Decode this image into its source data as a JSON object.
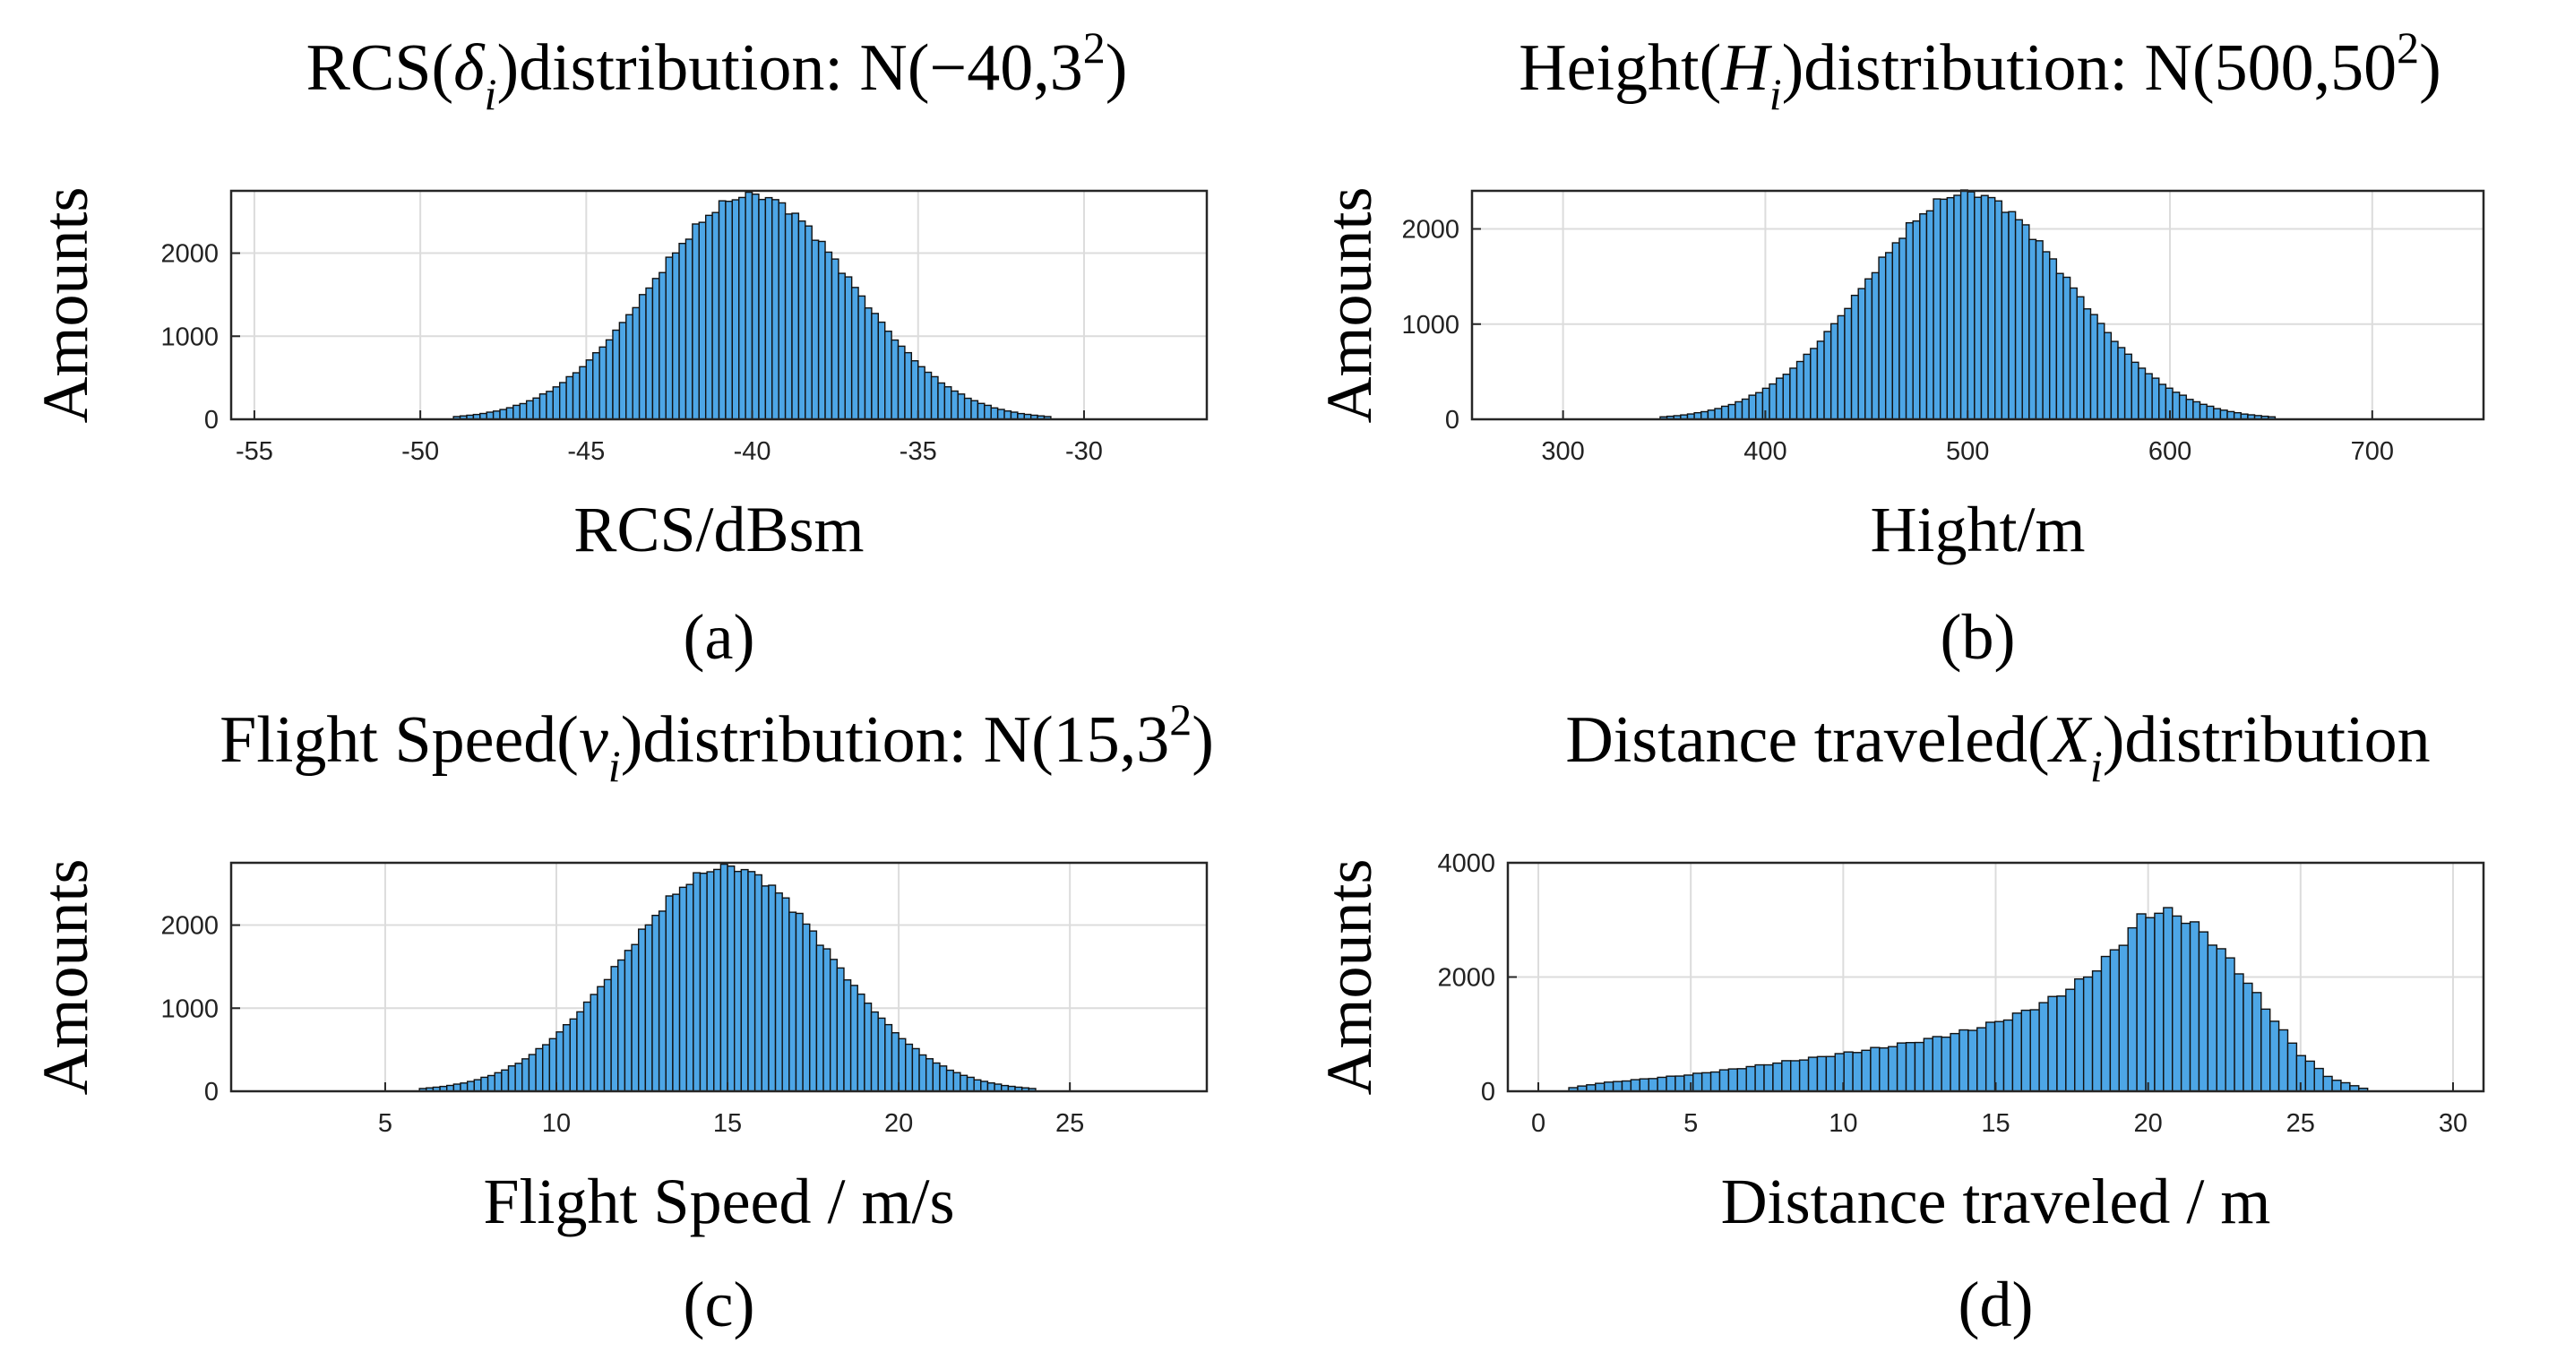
{
  "figure": {
    "bar_color": "#4da6e6",
    "edge_color": "#111111"
  },
  "chart_data": [
    {
      "type": "bar",
      "panel": "(a)",
      "title": {
        "pre": "RCS(",
        "sym": "δ",
        "sub": "i",
        "post": ")distribution: N(−40,3",
        "sup": "2",
        "end": ")"
      },
      "xlabel": "RCS/dBsm",
      "ylabel": "Amounts",
      "xlim": [
        -55.7,
        -26.3
      ],
      "ylim": [
        0,
        2750
      ],
      "xticks": [
        -55,
        -50,
        -45,
        -40,
        -35,
        -30
      ],
      "xtick_labels": [
        "-55",
        "-50",
        "-45",
        "-40",
        "-35",
        "-30"
      ],
      "yticks": [
        0,
        1000,
        2000
      ],
      "ytick_labels": [
        "0",
        "1000",
        "2000"
      ],
      "distribution": {
        "kind": "normal",
        "mu": -40,
        "sigma": 3,
        "n": 100000
      },
      "bin_range": [
        -49,
        -31
      ],
      "bin_count": 90,
      "peak_value": 2700
    },
    {
      "type": "bar",
      "panel": "(b)",
      "title": {
        "pre": "Height(",
        "sym": "H",
        "sub": "i",
        "post": ")distribution: N(500,50",
        "sup": "2",
        "end": ")"
      },
      "xlabel": "Hight/m",
      "ylabel": "Amounts",
      "xlim": [
        255,
        755
      ],
      "ylim": [
        0,
        2400
      ],
      "xticks": [
        300,
        400,
        500,
        600,
        700
      ],
      "xtick_labels": [
        "300",
        "400",
        "500",
        "600",
        "700"
      ],
      "yticks": [
        0,
        1000,
        2000
      ],
      "ytick_labels": [
        "0",
        "1000",
        "2000"
      ],
      "distribution": {
        "kind": "normal",
        "mu": 500,
        "sigma": 50,
        "n": 100000
      },
      "bin_range": [
        348,
        652
      ],
      "bin_count": 90,
      "peak_value": 2380
    },
    {
      "type": "bar",
      "panel": "(c)",
      "title": {
        "pre": "Flight Speed(",
        "sym": "v",
        "sub": "i",
        "post": ")distribution: N(15,3",
        "sup": "2",
        "end": ")"
      },
      "xlabel": "Flight Speed / m/s",
      "ylabel": "Amounts",
      "xlim": [
        0.5,
        29
      ],
      "ylim": [
        0,
        2750
      ],
      "xticks": [
        5,
        10,
        15,
        20,
        25
      ],
      "xtick_labels": [
        "5",
        "10",
        "15",
        "20",
        "25"
      ],
      "yticks": [
        0,
        1000,
        2000
      ],
      "ytick_labels": [
        "0",
        "1000",
        "2000"
      ],
      "distribution": {
        "kind": "normal",
        "mu": 15,
        "sigma": 3,
        "n": 100000
      },
      "bin_range": [
        6,
        24
      ],
      "bin_count": 90,
      "peak_value": 2700
    },
    {
      "type": "bar",
      "panel": "(d)",
      "title": {
        "pre": "Distance traveled(",
        "sym": "X",
        "sub": "i",
        "post": ")distribution",
        "sup": "",
        "end": ""
      },
      "xlabel": "Distance traveled / m",
      "ylabel": "Amounts",
      "xlim": [
        -1,
        31
      ],
      "ylim": [
        0,
        4000
      ],
      "xticks": [
        0,
        5,
        10,
        15,
        20,
        25,
        30
      ],
      "xtick_labels": [
        "0",
        "5",
        "10",
        "15",
        "20",
        "25",
        "30"
      ],
      "yticks": [
        0,
        2000,
        4000
      ],
      "ytick_labels": [
        "0",
        "2000",
        "4000"
      ],
      "bin_range": [
        1,
        27.2
      ],
      "bin_count": 90,
      "profile_points": [
        [
          1,
          50
        ],
        [
          2,
          140
        ],
        [
          3,
          190
        ],
        [
          4,
          240
        ],
        [
          5,
          290
        ],
        [
          6,
          360
        ],
        [
          7,
          430
        ],
        [
          8,
          510
        ],
        [
          9,
          580
        ],
        [
          10,
          660
        ],
        [
          11,
          740
        ],
        [
          12,
          830
        ],
        [
          13,
          930
        ],
        [
          14,
          1050
        ],
        [
          15,
          1200
        ],
        [
          16,
          1400
        ],
        [
          17,
          1650
        ],
        [
          18,
          2000
        ],
        [
          19,
          2500
        ],
        [
          19.8,
          3050
        ],
        [
          20.2,
          3150
        ],
        [
          21,
          3100
        ],
        [
          22,
          2700
        ],
        [
          23,
          2100
        ],
        [
          24,
          1350
        ],
        [
          25,
          650
        ],
        [
          26,
          220
        ],
        [
          27.2,
          30
        ]
      ]
    }
  ]
}
